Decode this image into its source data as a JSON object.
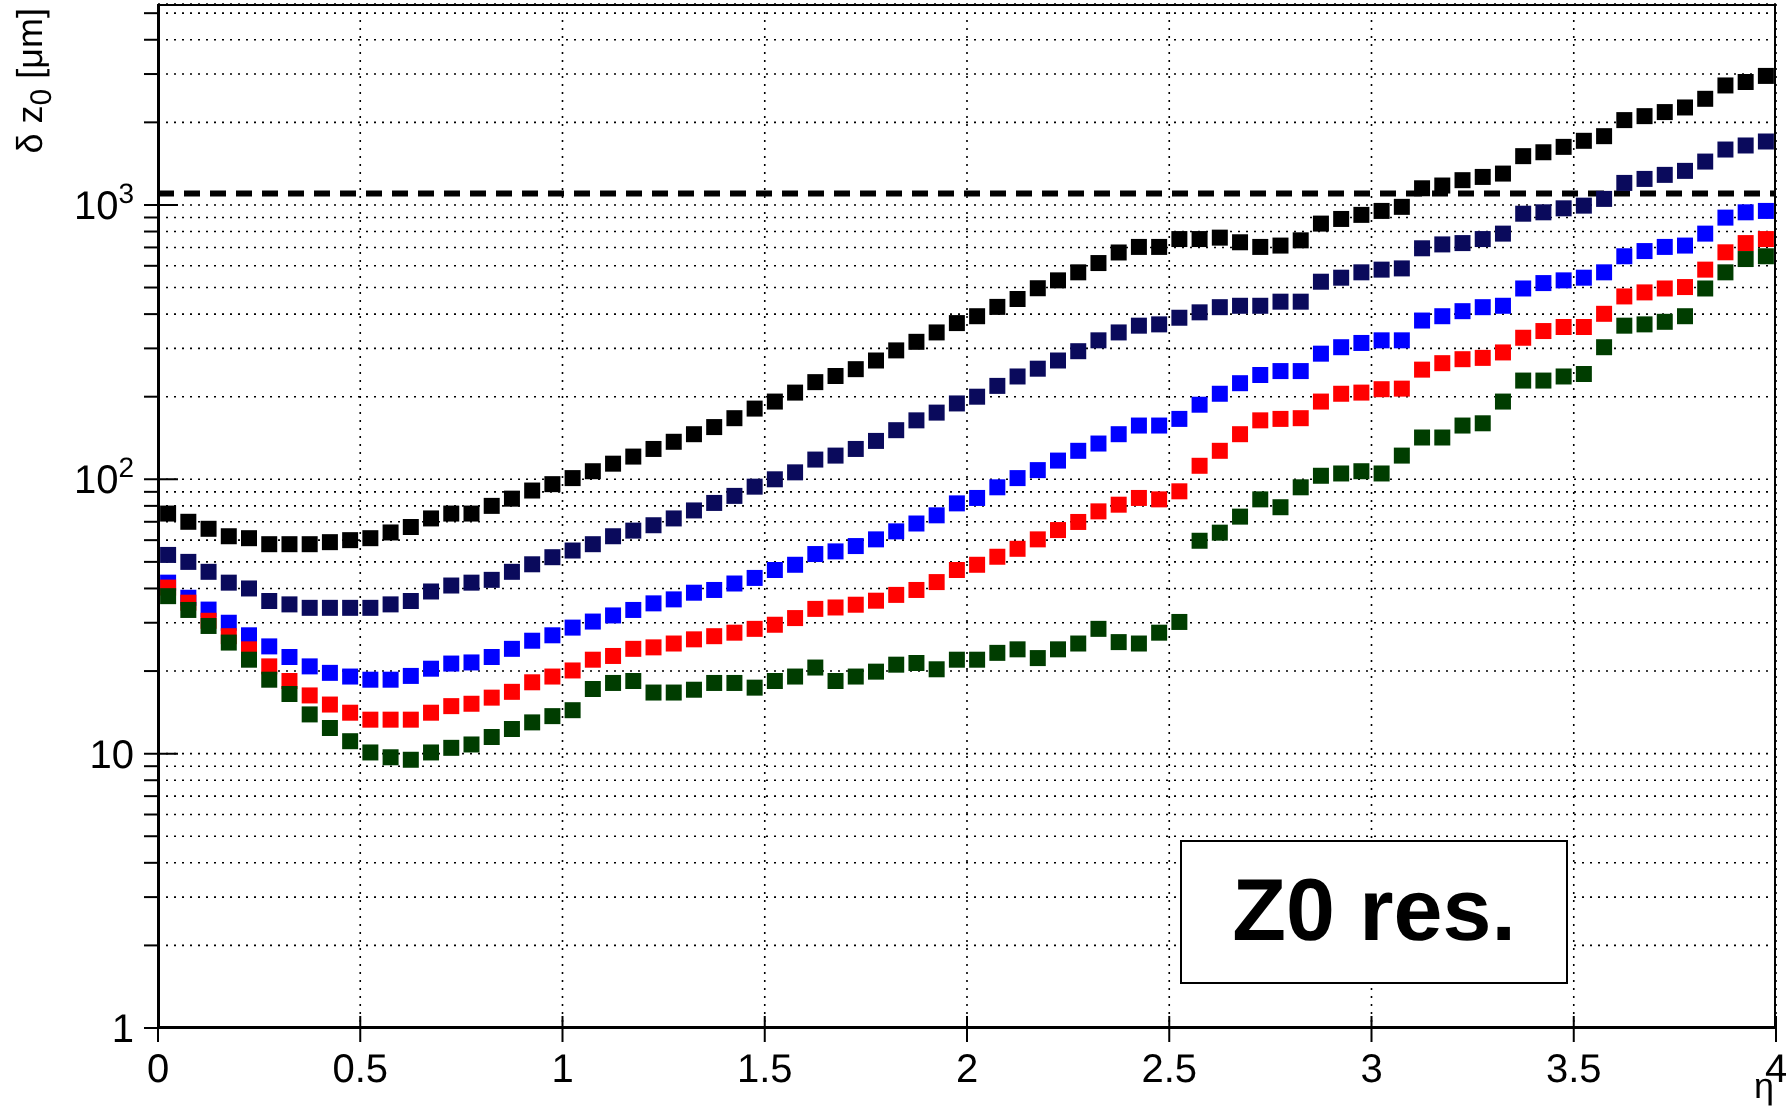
{
  "chart_data": {
    "type": "scatter",
    "xlabel": "η",
    "ylabel": "δ z$_{0}$ [μm]",
    "log": "y",
    "grid": true,
    "marker": "square",
    "annotations": [
      "Z0 res."
    ],
    "xlim": [
      0,
      4
    ],
    "xticks": [
      0,
      0.5,
      1,
      1.5,
      2,
      2.5,
      3,
      3.5,
      4
    ],
    "ylim": [
      1,
      5400
    ],
    "yticks": [
      {
        "value": 1,
        "label": "1"
      },
      {
        "value": 2,
        "label": null
      },
      {
        "value": 3,
        "label": null
      },
      {
        "value": 4,
        "label": null
      },
      {
        "value": 5,
        "label": null
      },
      {
        "value": 6,
        "label": null
      },
      {
        "value": 7,
        "label": null
      },
      {
        "value": 8,
        "label": null
      },
      {
        "value": 9,
        "label": null
      },
      {
        "value": 10,
        "label": "10"
      },
      {
        "value": 20,
        "label": null
      },
      {
        "value": 30,
        "label": null
      },
      {
        "value": 40,
        "label": null
      },
      {
        "value": 50,
        "label": null
      },
      {
        "value": 60,
        "label": null
      },
      {
        "value": 70,
        "label": null
      },
      {
        "value": 80,
        "label": null
      },
      {
        "value": 90,
        "label": null
      },
      {
        "value": 100,
        "label": "10$^{2}$"
      },
      {
        "value": 200,
        "label": null
      },
      {
        "value": 300,
        "label": null
      },
      {
        "value": 400,
        "label": null
      },
      {
        "value": 500,
        "label": null
      },
      {
        "value": 600,
        "label": null
      },
      {
        "value": 700,
        "label": null
      },
      {
        "value": 800,
        "label": null
      },
      {
        "value": 900,
        "label": null
      },
      {
        "value": 1000,
        "label": "10$^{3}$"
      },
      {
        "value": 2000,
        "label": null
      },
      {
        "value": 3000,
        "label": null
      },
      {
        "value": 4000,
        "label": null
      },
      {
        "value": 5000,
        "label": null
      }
    ],
    "ref_lines": [
      {
        "axis": "y",
        "value": 1100,
        "color": "#000000",
        "line_style": "dashed"
      }
    ],
    "x": [
      0.025,
      0.075,
      0.125,
      0.175,
      0.225,
      0.275,
      0.325,
      0.375,
      0.425,
      0.475,
      0.525,
      0.575,
      0.625,
      0.675,
      0.725,
      0.775,
      0.825,
      0.875,
      0.925,
      0.975,
      1.025,
      1.075,
      1.125,
      1.175,
      1.225,
      1.275,
      1.325,
      1.375,
      1.425,
      1.475,
      1.525,
      1.575,
      1.625,
      1.675,
      1.725,
      1.775,
      1.825,
      1.875,
      1.925,
      1.975,
      2.025,
      2.075,
      2.125,
      2.175,
      2.225,
      2.275,
      2.325,
      2.375,
      2.425,
      2.475,
      2.525,
      2.575,
      2.625,
      2.675,
      2.725,
      2.775,
      2.825,
      2.875,
      2.925,
      2.975,
      3.025,
      3.075,
      3.125,
      3.175,
      3.225,
      3.275,
      3.325,
      3.375,
      3.425,
      3.475,
      3.525,
      3.575,
      3.625,
      3.675,
      3.725,
      3.775,
      3.825,
      3.875,
      3.925,
      3.975
    ],
    "series": [
      {
        "color": "#000000",
        "values": [
          75,
          70,
          66,
          62,
          61,
          58,
          58,
          58,
          59,
          60,
          61,
          64,
          67,
          72,
          75,
          75,
          80,
          85,
          91,
          96,
          101,
          107,
          114,
          121,
          129,
          137,
          146,
          155,
          167,
          181,
          192,
          207,
          226,
          238,
          252,
          271,
          295,
          317,
          343,
          371,
          393,
          425,
          454,
          497,
          531,
          568,
          614,
          671,
          703,
          703,
          751,
          751,
          760,
          731,
          703,
          711,
          743,
          855,
          889,
          920,
          951,
          984,
          1150,
          1177,
          1231,
          1265,
          1301,
          1506,
          1556,
          1628,
          1713,
          1781,
          2038,
          2107,
          2180,
          2266,
          2437,
          2726,
          2806,
          2953
        ]
      },
      {
        "color": "#0a0a5c",
        "values": [
          53,
          50,
          46,
          42,
          40,
          36,
          35,
          34,
          34,
          34,
          34,
          35,
          36,
          39,
          41,
          42,
          43,
          46,
          49,
          52,
          55,
          58,
          62,
          65,
          68,
          72,
          77,
          82,
          87,
          94,
          100,
          106,
          118,
          122,
          129,
          138,
          151,
          164,
          175,
          189,
          200,
          219,
          237,
          253,
          271,
          293,
          321,
          343,
          363,
          367,
          388,
          406,
          424,
          429,
          429,
          444,
          444,
          525,
          543,
          568,
          581,
          587,
          695,
          718,
          726,
          751,
          786,
          929,
          940,
          972,
          994,
          1052,
          1203,
          1244,
          1287,
          1331,
          1439,
          1592,
          1647,
          1703
        ]
      },
      {
        "color": "#0000ff",
        "values": [
          42,
          37,
          33.5,
          30,
          27,
          24.6,
          22.5,
          20.8,
          19.7,
          19.1,
          18.6,
          18.6,
          19.2,
          20.4,
          21.3,
          21.5,
          22.5,
          24.1,
          25.8,
          27,
          28.8,
          30.3,
          31.9,
          33.4,
          35.3,
          36.5,
          38.6,
          39.5,
          41.7,
          43.7,
          46.7,
          48.8,
          53.4,
          54.6,
          57.1,
          60.4,
          64.6,
          69,
          73.9,
          81.7,
          85.5,
          93.5,
          101,
          108,
          117,
          127,
          135,
          146,
          157,
          157,
          166,
          187,
          205,
          224,
          240,
          248,
          248,
          287,
          303,
          314,
          321,
          321,
          379,
          393,
          410,
          424,
          429,
          496,
          519,
          531,
          543,
          568,
          650,
          679,
          703,
          711,
          786,
          899,
          940,
          951
        ]
      },
      {
        "color": "#ff0000",
        "values": [
          40.3,
          35.5,
          30.5,
          26.8,
          24,
          20.8,
          18.4,
          16.3,
          15.1,
          14.1,
          13.3,
          13.3,
          13.3,
          14.1,
          14.9,
          15.2,
          16,
          16.8,
          18.2,
          19.1,
          20.1,
          22,
          22.7,
          24.1,
          24.4,
          25.2,
          26.1,
          26.8,
          27.6,
          28.5,
          29.5,
          31.2,
          33.7,
          34.1,
          34.9,
          36.1,
          37.9,
          39.5,
          42.2,
          46.7,
          48.8,
          52.2,
          55.8,
          60.4,
          65.3,
          69.9,
          76.4,
          80.8,
          85.5,
          84.5,
          90.4,
          112,
          127,
          146,
          164,
          166,
          167,
          192,
          205,
          207,
          213,
          214,
          251,
          265,
          274,
          277,
          290,
          328,
          347,
          359,
          359,
          401,
          464,
          480,
          496,
          502,
          581,
          672,
          726,
          751
        ]
      },
      {
        "color": "#003d00",
        "values": [
          37.5,
          33.4,
          29.2,
          25.4,
          22,
          18.6,
          16.5,
          13.9,
          12.4,
          11.1,
          10.1,
          9.7,
          9.5,
          10.1,
          10.5,
          10.8,
          11.5,
          12.3,
          13,
          13.7,
          14.4,
          17.2,
          18.1,
          18.4,
          16.7,
          16.7,
          17.1,
          18.1,
          18.1,
          17.4,
          18.4,
          19.1,
          20.6,
          18.4,
          19.1,
          19.9,
          21.1,
          21.4,
          20.3,
          22,
          22,
          23.3,
          24,
          22.3,
          24,
          25.2,
          28.5,
          25.5,
          25.2,
          27.6,
          30.2,
          59.7,
          63.9,
          73.1,
          84.5,
          79.1,
          93.5,
          103,
          105,
          107,
          105,
          122,
          142,
          142,
          157,
          160,
          192,
          229,
          229,
          237,
          242,
          303,
          363,
          367,
          375,
          393,
          496,
          568,
          635,
          650
        ]
      }
    ]
  }
}
